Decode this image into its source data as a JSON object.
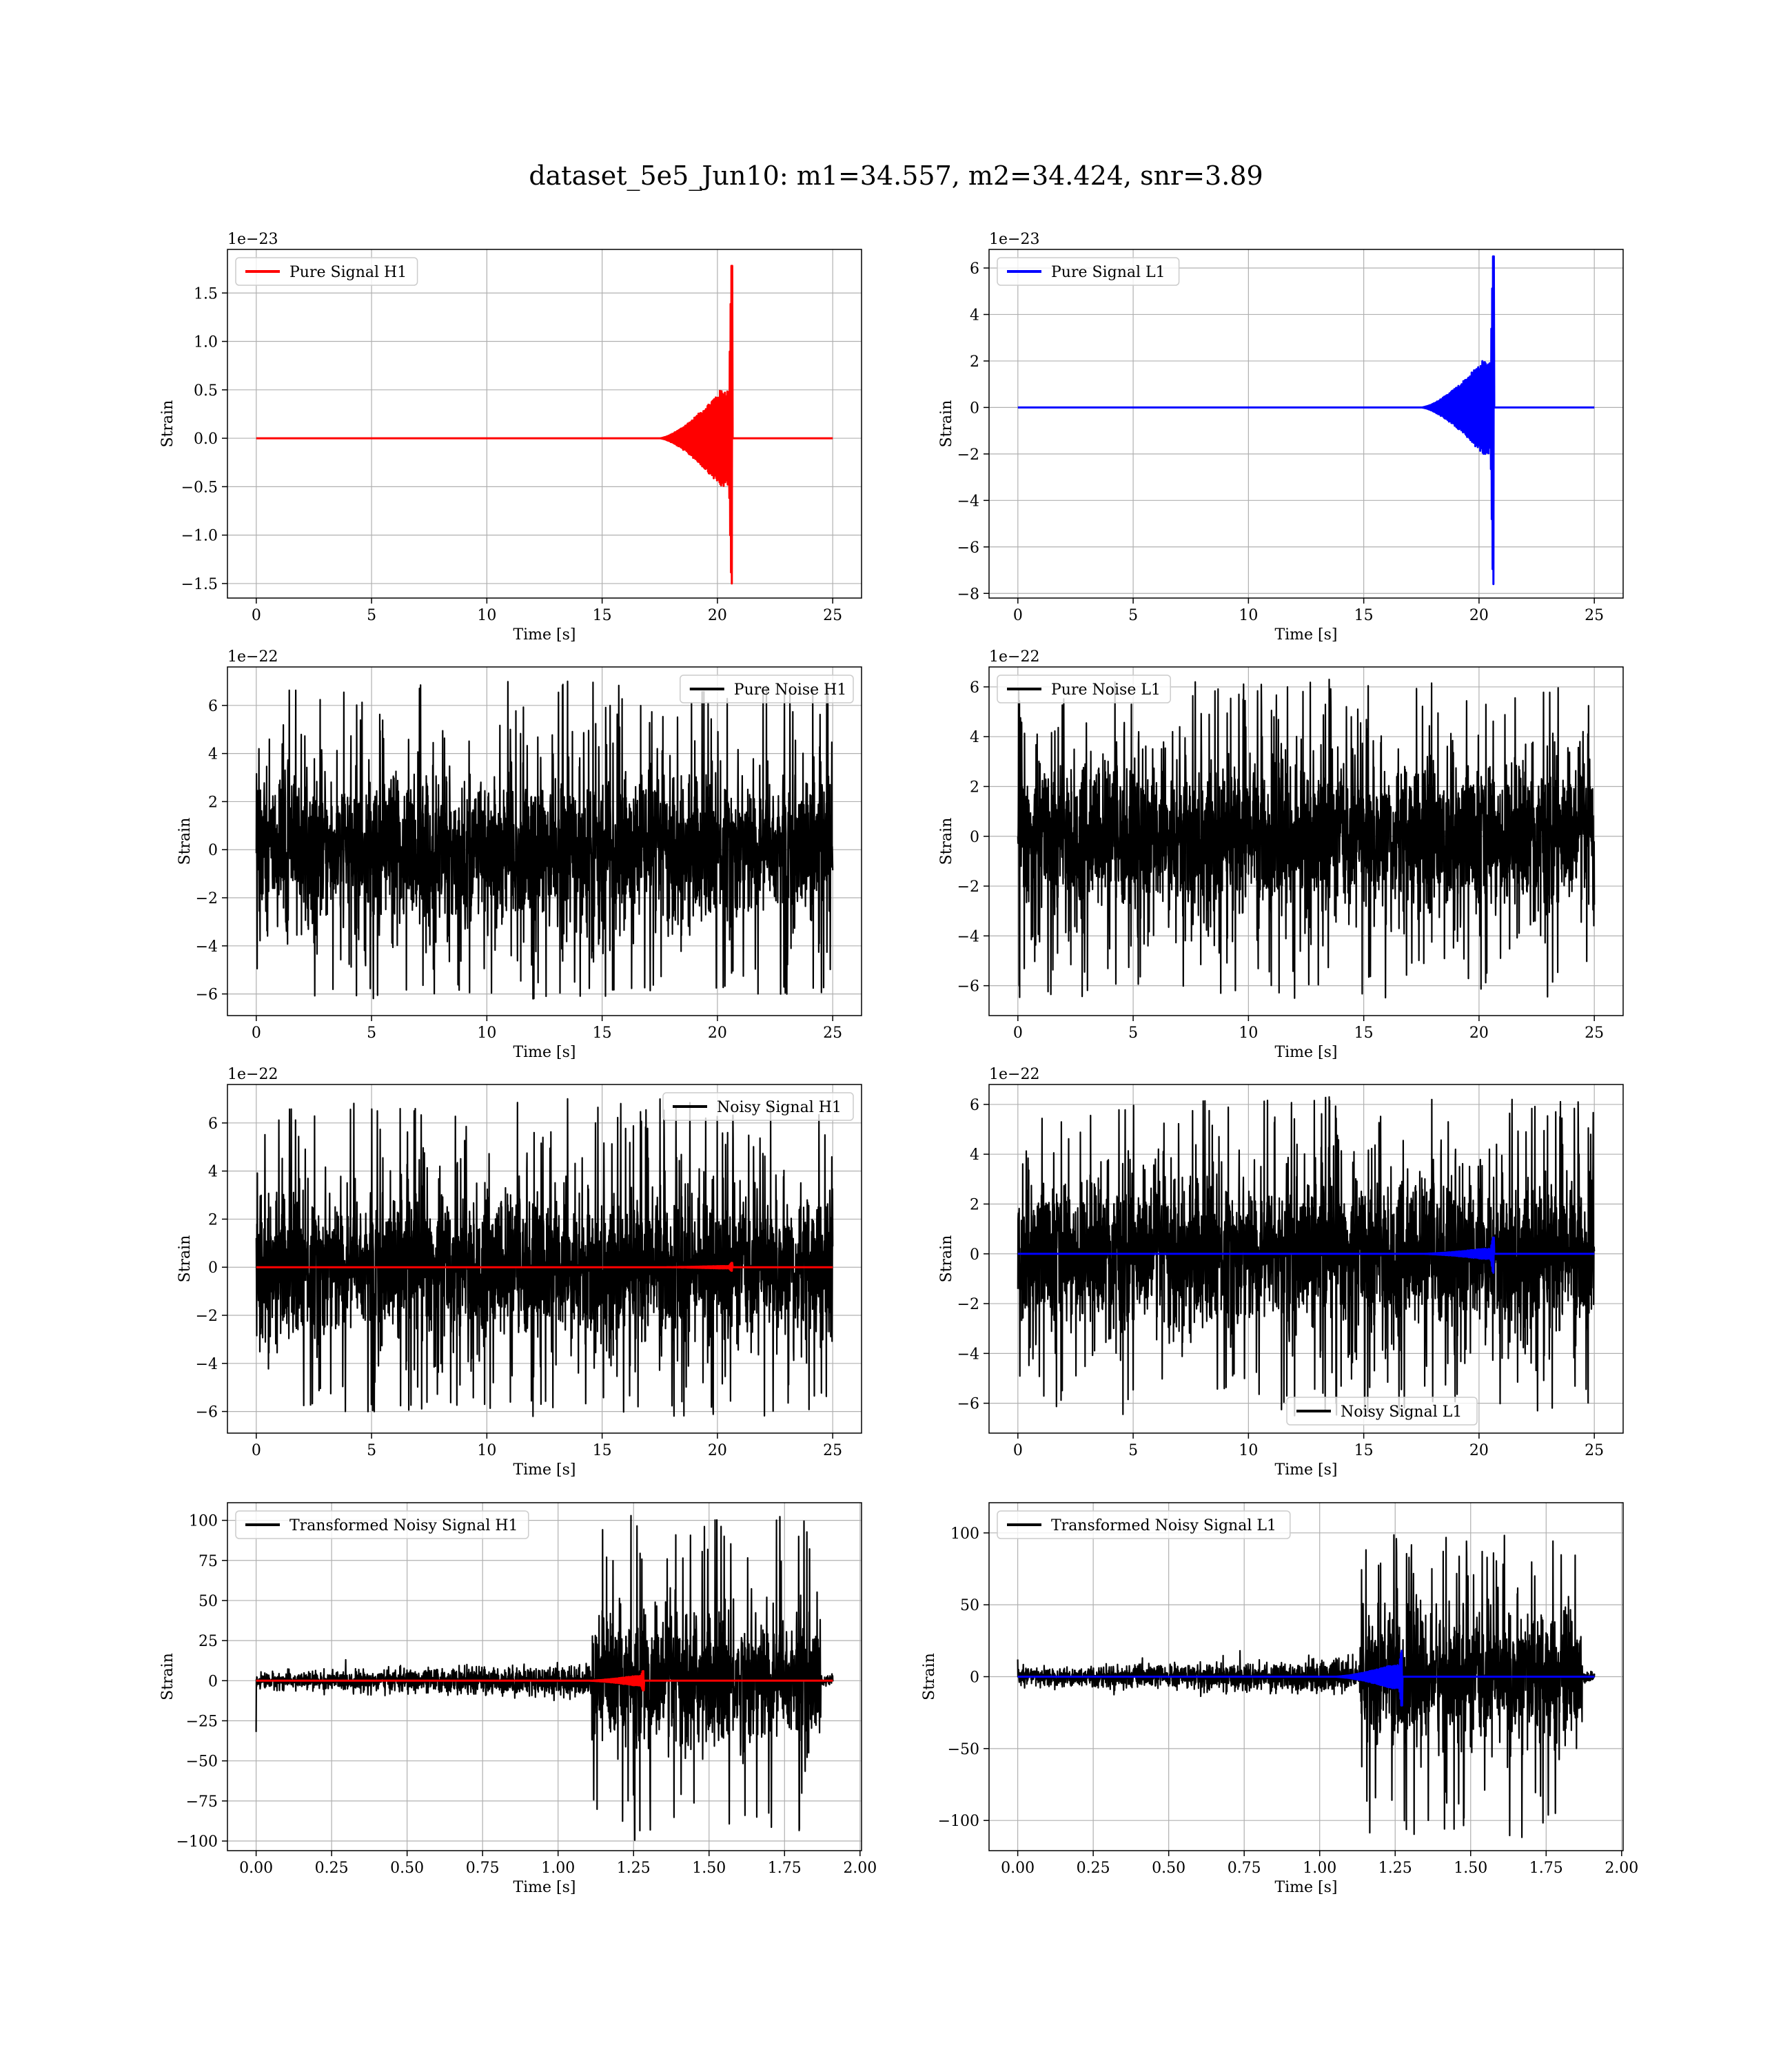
{
  "suptitle": "dataset_5e5_Jun10: m1=34.557, m2=34.424, snr=3.89",
  "colors": {
    "red": "#ff0000",
    "blue": "#0000ff",
    "black": "#000000"
  },
  "chart_data": [
    {
      "type": "line",
      "xlabel": "Time [s]",
      "ylabel": "Strain",
      "offset_text": "1e−23",
      "xlim": [
        -1.25,
        26.25
      ],
      "ylim": [
        -1.65,
        1.95
      ],
      "xticks": [
        0,
        5,
        10,
        15,
        20,
        25
      ],
      "xtick_labels": [
        "0",
        "5",
        "10",
        "15",
        "20",
        "25"
      ],
      "yticks": [
        -1.5,
        -1.0,
        -0.5,
        0.0,
        0.5,
        1.0,
        1.5
      ],
      "ytick_labels": [
        "−1.5",
        "−1.0",
        "−0.5",
        "0.0",
        "0.5",
        "1.0",
        "1.5"
      ],
      "grid": true,
      "legend_position": "upper-left",
      "series": [
        {
          "name": "Pure Signal H1",
          "color": "#ff0000",
          "kind": "chirp",
          "x_range": [
            0,
            25
          ],
          "merger_time": 20.6,
          "peak_max": 1.78,
          "peak_min": -1.5,
          "pre_merger_amp": 0.5,
          "onset_time": 17.5
        }
      ]
    },
    {
      "type": "line",
      "xlabel": "Time [s]",
      "ylabel": "Strain",
      "offset_text": "1e−23",
      "xlim": [
        -1.25,
        26.25
      ],
      "ylim": [
        -8.2,
        6.8
      ],
      "xticks": [
        0,
        5,
        10,
        15,
        20,
        25
      ],
      "xtick_labels": [
        "0",
        "5",
        "10",
        "15",
        "20",
        "25"
      ],
      "yticks": [
        -8,
        -6,
        -4,
        -2,
        0,
        2,
        4,
        6
      ],
      "ytick_labels": [
        "−8",
        "−6",
        "−4",
        "−2",
        "0",
        "2",
        "4",
        "6"
      ],
      "grid": true,
      "legend_position": "upper-left",
      "series": [
        {
          "name": "Pure Signal L1",
          "color": "#0000ff",
          "kind": "chirp",
          "x_range": [
            0,
            25
          ],
          "merger_time": 20.6,
          "peak_max": 6.5,
          "peak_min": -7.6,
          "pre_merger_amp": 2.0,
          "onset_time": 17.5
        }
      ]
    },
    {
      "type": "line",
      "xlabel": "Time [s]",
      "ylabel": "Strain",
      "offset_text": "1e−22",
      "xlim": [
        -1.25,
        26.25
      ],
      "ylim": [
        -6.9,
        7.6
      ],
      "xticks": [
        0,
        5,
        10,
        15,
        20,
        25
      ],
      "xtick_labels": [
        "0",
        "5",
        "10",
        "15",
        "20",
        "25"
      ],
      "yticks": [
        -6,
        -4,
        -2,
        0,
        2,
        4,
        6
      ],
      "ytick_labels": [
        "−6",
        "−4",
        "−2",
        "0",
        "2",
        "4",
        "6"
      ],
      "grid": true,
      "legend_position": "upper-right",
      "series": [
        {
          "name": "Pure Noise H1",
          "color": "#000000",
          "kind": "noise",
          "x_range": [
            0,
            25
          ],
          "envelope_max": 7.0,
          "envelope_min": -6.2,
          "band": 3.5
        }
      ]
    },
    {
      "type": "line",
      "xlabel": "Time [s]",
      "ylabel": "Strain",
      "offset_text": "1e−22",
      "xlim": [
        -1.25,
        26.25
      ],
      "ylim": [
        -7.2,
        6.8
      ],
      "xticks": [
        0,
        5,
        10,
        15,
        20,
        25
      ],
      "xtick_labels": [
        "0",
        "5",
        "10",
        "15",
        "20",
        "25"
      ],
      "yticks": [
        -6,
        -4,
        -2,
        0,
        2,
        4,
        6
      ],
      "ytick_labels": [
        "−6",
        "−4",
        "−2",
        "0",
        "2",
        "4",
        "6"
      ],
      "grid": true,
      "legend_position": "upper-left",
      "series": [
        {
          "name": "Pure Noise L1",
          "color": "#000000",
          "kind": "noise",
          "x_range": [
            0,
            25
          ],
          "envelope_max": 6.3,
          "envelope_min": -6.5,
          "band": 3.5
        }
      ]
    },
    {
      "type": "line",
      "xlabel": "Time [s]",
      "ylabel": "Strain",
      "offset_text": "1e−22",
      "xlim": [
        -1.25,
        26.25
      ],
      "ylim": [
        -6.9,
        7.6
      ],
      "xticks": [
        0,
        5,
        10,
        15,
        20,
        25
      ],
      "xtick_labels": [
        "0",
        "5",
        "10",
        "15",
        "20",
        "25"
      ],
      "yticks": [
        -6,
        -4,
        -2,
        0,
        2,
        4,
        6
      ],
      "ytick_labels": [
        "−6",
        "−4",
        "−2",
        "0",
        "2",
        "4",
        "6"
      ],
      "grid": true,
      "legend_position": "upper-right",
      "series": [
        {
          "name": "Noisy Signal H1",
          "color": "#000000",
          "kind": "noise",
          "x_range": [
            0,
            25
          ],
          "envelope_max": 7.0,
          "envelope_min": -6.2,
          "band": 3.5
        },
        {
          "name": "",
          "color": "#ff0000",
          "kind": "chirp",
          "x_range": [
            0,
            25
          ],
          "merger_time": 20.6,
          "peak_max": 0.18,
          "peak_min": -0.15,
          "pre_merger_amp": 0.05,
          "onset_time": 17.5
        }
      ]
    },
    {
      "type": "line",
      "xlabel": "Time [s]",
      "ylabel": "Strain",
      "offset_text": "1e−22",
      "xlim": [
        -1.25,
        26.25
      ],
      "ylim": [
        -7.2,
        6.8
      ],
      "xticks": [
        0,
        5,
        10,
        15,
        20,
        25
      ],
      "xtick_labels": [
        "0",
        "5",
        "10",
        "15",
        "20",
        "25"
      ],
      "yticks": [
        -6,
        -4,
        -2,
        0,
        2,
        4,
        6
      ],
      "ytick_labels": [
        "−6",
        "−4",
        "−2",
        "0",
        "2",
        "4",
        "6"
      ],
      "grid": true,
      "legend_position": "lower-center",
      "series": [
        {
          "name": "Noisy Signal L1",
          "color": "#000000",
          "kind": "noise",
          "x_range": [
            0,
            25
          ],
          "envelope_max": 6.3,
          "envelope_min": -6.5,
          "band": 3.5
        },
        {
          "name": "",
          "color": "#0000ff",
          "kind": "chirp",
          "x_range": [
            0,
            25
          ],
          "merger_time": 20.6,
          "peak_max": 0.65,
          "peak_min": -0.76,
          "pre_merger_amp": 0.2,
          "onset_time": 17.5
        }
      ]
    },
    {
      "type": "line",
      "xlabel": "Time [s]",
      "ylabel": "Strain",
      "offset_text": "",
      "xlim": [
        -0.095,
        2.005
      ],
      "ylim": [
        -106,
        111
      ],
      "xticks": [
        0.0,
        0.25,
        0.5,
        0.75,
        1.0,
        1.25,
        1.5,
        1.75,
        2.0
      ],
      "xtick_labels": [
        "0.00",
        "0.25",
        "0.50",
        "0.75",
        "1.00",
        "1.25",
        "1.50",
        "1.75",
        "2.00"
      ],
      "yticks": [
        -100,
        -75,
        -50,
        -25,
        0,
        25,
        50,
        75,
        100
      ],
      "ytick_labels": [
        "−100",
        "−75",
        "−50",
        "−25",
        "0",
        "25",
        "50",
        "75",
        "100"
      ],
      "grid": true,
      "legend_position": "upper-left",
      "series": [
        {
          "name": "Transformed Noisy Signal H1",
          "color": "#000000",
          "kind": "whitened",
          "x_range": [
            0,
            1.91
          ],
          "burst_start": 1.11,
          "burst_end": 1.87,
          "envelope_max": 104,
          "envelope_min": -100,
          "quiet_amp": 10,
          "burst_band": 45,
          "start_spike": -32
        },
        {
          "name": "",
          "color": "#ff0000",
          "kind": "chirp",
          "x_range": [
            0,
            1.91
          ],
          "merger_time": 1.28,
          "peak_max": 6,
          "peak_min": -6,
          "pre_merger_amp": 3,
          "onset_time": 1.1
        }
      ]
    },
    {
      "type": "line",
      "xlabel": "Time [s]",
      "ylabel": "Strain",
      "offset_text": "",
      "xlim": [
        -0.095,
        2.005
      ],
      "ylim": [
        -121,
        121
      ],
      "xticks": [
        0.0,
        0.25,
        0.5,
        0.75,
        1.0,
        1.25,
        1.5,
        1.75,
        2.0
      ],
      "xtick_labels": [
        "0.00",
        "0.25",
        "0.50",
        "0.75",
        "1.00",
        "1.25",
        "1.50",
        "1.75",
        "2.00"
      ],
      "yticks": [
        -100,
        -50,
        0,
        50,
        100
      ],
      "ytick_labels": [
        "−100",
        "−50",
        "0",
        "50",
        "100"
      ],
      "grid": true,
      "legend_position": "upper-left",
      "series": [
        {
          "name": "Transformed Noisy Signal L1",
          "color": "#000000",
          "kind": "whitened",
          "x_range": [
            0,
            1.91
          ],
          "burst_start": 1.13,
          "burst_end": 1.87,
          "envelope_max": 100,
          "envelope_min": -112,
          "quiet_amp": 12,
          "burst_band": 50,
          "start_spike": 12
        },
        {
          "name": "",
          "color": "#0000ff",
          "kind": "chirp",
          "x_range": [
            0,
            1.91
          ],
          "merger_time": 1.27,
          "peak_max": 18,
          "peak_min": -20,
          "pre_merger_amp": 8,
          "onset_time": 1.05
        }
      ]
    }
  ]
}
